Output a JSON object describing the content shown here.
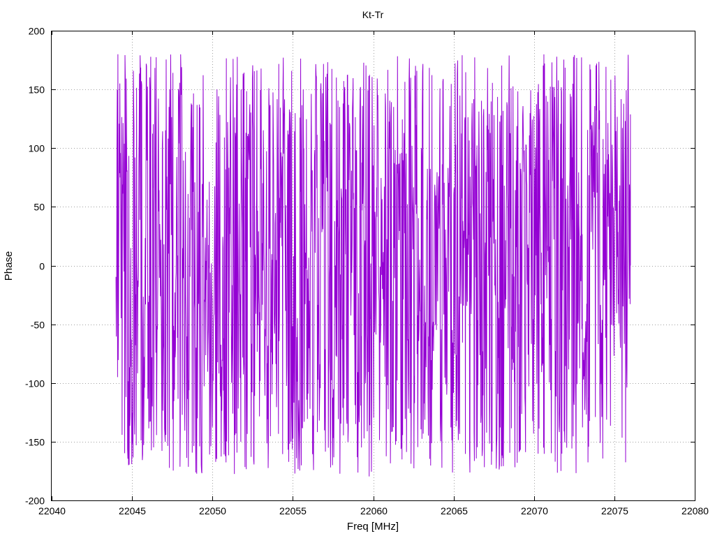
{
  "chart_data": {
    "type": "line",
    "title": "Kt-Tr",
    "xlabel": "Freq [MHz]",
    "ylabel": "Phase",
    "xlim": [
      22040,
      22080
    ],
    "ylim": [
      -200,
      200
    ],
    "xticks": [
      22040,
      22045,
      22050,
      22055,
      22060,
      22065,
      22070,
      22075,
      22080
    ],
    "yticks": [
      -200,
      -150,
      -100,
      -50,
      0,
      50,
      100,
      150,
      200
    ],
    "grid": true,
    "legend": "none",
    "series": [
      {
        "color": "#9400d3",
        "x_range": [
          22044,
          22076
        ],
        "point_count": 1600,
        "note": "Rapidly wrapping phase (~±180 deg) across 22044–22076 MHz",
        "sample_values": [
          {
            "x": 22044.0,
            "y": -50
          },
          {
            "x": 22044.1,
            "y": -140
          },
          {
            "x": 22044.3,
            "y": 100
          },
          {
            "x": 22044.4,
            "y": 170
          },
          {
            "x": 22044.6,
            "y": -110
          },
          {
            "x": 22044.8,
            "y": 110
          },
          {
            "x": 22045.0,
            "y": -175
          },
          {
            "x": 22045.3,
            "y": 60
          },
          {
            "x": 22045.5,
            "y": 165
          },
          {
            "x": 22046.0,
            "y": -100
          },
          {
            "x": 22046.5,
            "y": 170
          },
          {
            "x": 22047.0,
            "y": -170
          },
          {
            "x": 22047.5,
            "y": 175
          },
          {
            "x": 22048.0,
            "y": -160
          },
          {
            "x": 22049.0,
            "y": 165
          },
          {
            "x": 22049.8,
            "y": -170
          },
          {
            "x": 22050.0,
            "y": 100
          },
          {
            "x": 22050.5,
            "y": -150
          },
          {
            "x": 22051.0,
            "y": 140
          },
          {
            "x": 22052.0,
            "y": -170
          },
          {
            "x": 22053.0,
            "y": 175
          },
          {
            "x": 22054.5,
            "y": -180
          },
          {
            "x": 22055.0,
            "y": 170
          },
          {
            "x": 22056.0,
            "y": -170
          },
          {
            "x": 22057.0,
            "y": 175
          },
          {
            "x": 22058.0,
            "y": -165
          },
          {
            "x": 22059.0,
            "y": 175
          },
          {
            "x": 22060.0,
            "y": -178
          },
          {
            "x": 22061.0,
            "y": 170
          },
          {
            "x": 22062.0,
            "y": -170
          },
          {
            "x": 22063.0,
            "y": 165
          },
          {
            "x": 22064.5,
            "y": 175
          },
          {
            "x": 22065.0,
            "y": -170
          },
          {
            "x": 22066.0,
            "y": 170
          },
          {
            "x": 22067.0,
            "y": -165
          },
          {
            "x": 22068.0,
            "y": 170
          },
          {
            "x": 22069.5,
            "y": 178
          },
          {
            "x": 22070.0,
            "y": -180
          },
          {
            "x": 22071.0,
            "y": 175
          },
          {
            "x": 22072.0,
            "y": -175
          },
          {
            "x": 22073.0,
            "y": 170
          },
          {
            "x": 22074.0,
            "y": -170
          },
          {
            "x": 22075.0,
            "y": 165
          },
          {
            "x": 22076.0,
            "y": 0
          }
        ]
      }
    ]
  }
}
